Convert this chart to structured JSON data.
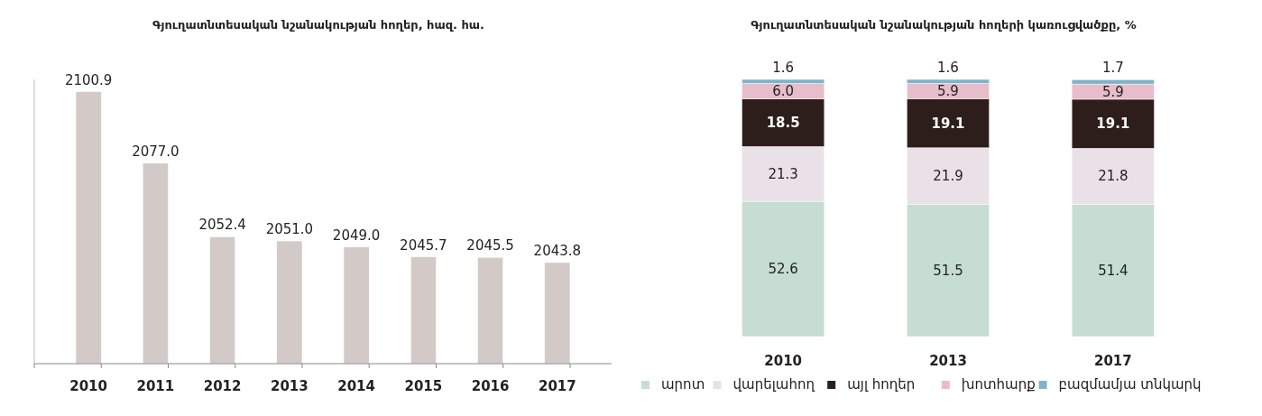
{
  "chart_data": [
    {
      "type": "bar",
      "title": "Գյուղատնտեսական նշանակության հողեր, հազ. հա.",
      "categories": [
        "2010",
        "2011",
        "2012",
        "2013",
        "2014",
        "2015",
        "2016",
        "2017"
      ],
      "values": [
        2100.9,
        2077.0,
        2052.4,
        2051.0,
        2049.0,
        2045.7,
        2045.5,
        2043.8
      ],
      "value_labels": [
        "2100.9",
        "2077.0",
        "2052.4",
        "2051.0",
        "2049.0",
        "2045.7",
        "2045.5",
        "2043.8"
      ],
      "color": "#d3cac7",
      "ylim": [
        2010,
        2105
      ],
      "tick_labels": "x",
      "grid": false,
      "legend": false
    },
    {
      "type": "bar",
      "title": "Գյուղատնտեսական նշանակության հողերի կառուցվածքը, %",
      "categories": [
        "2010",
        "2013",
        "2017"
      ],
      "stacked": true,
      "ylim": [
        0,
        100
      ],
      "tick_labels": "x",
      "grid": false,
      "legend": "bottom",
      "series": [
        {
          "name": "արոտ",
          "color": "#c6ddd2",
          "values": [
            52.6,
            51.5,
            51.4
          ],
          "value_labels": [
            "52.6",
            "51.5",
            "51.4"
          ]
        },
        {
          "name": "վարելահող",
          "color": "#e9e1e7",
          "values": [
            21.3,
            21.9,
            21.8
          ],
          "value_labels": [
            "21.3",
            "21.9",
            "21.8"
          ]
        },
        {
          "name": "այլ հողեր",
          "color": "#2d1e1b",
          "values": [
            18.5,
            19.1,
            19.1
          ],
          "value_labels": [
            "18.5",
            "19.1",
            "19.1"
          ]
        },
        {
          "name": "խոտհարք",
          "color": "#e7bccb",
          "values": [
            6.0,
            5.9,
            5.9
          ],
          "value_labels": [
            "6.0",
            "5.9",
            "5.9"
          ]
        },
        {
          "name": "բազմամյա տնկարկ",
          "color": "#7db4c9",
          "values": [
            1.6,
            1.6,
            1.7
          ],
          "value_labels": [
            "1.6",
            "1.6",
            "1.7"
          ]
        }
      ]
    }
  ]
}
